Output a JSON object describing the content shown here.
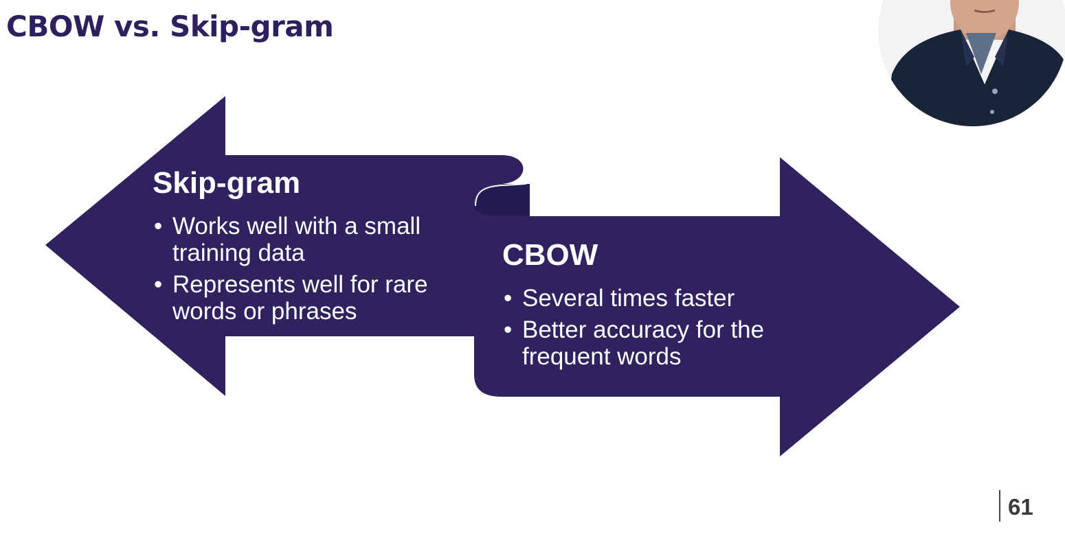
{
  "slide": {
    "title": "CBOW vs. Skip-gram",
    "page_number": "61"
  },
  "skip_gram": {
    "heading": "Skip-gram",
    "points": [
      "Works well with a small training data",
      "Represents well for rare words or phrases"
    ]
  },
  "cbow": {
    "heading": "CBOW",
    "points": [
      "Several times faster",
      "Better accuracy for the frequent words"
    ]
  },
  "colors": {
    "arrow_fill": "#2f225f",
    "arrow_fold": "#261a52",
    "title": "#2e1f5e"
  }
}
